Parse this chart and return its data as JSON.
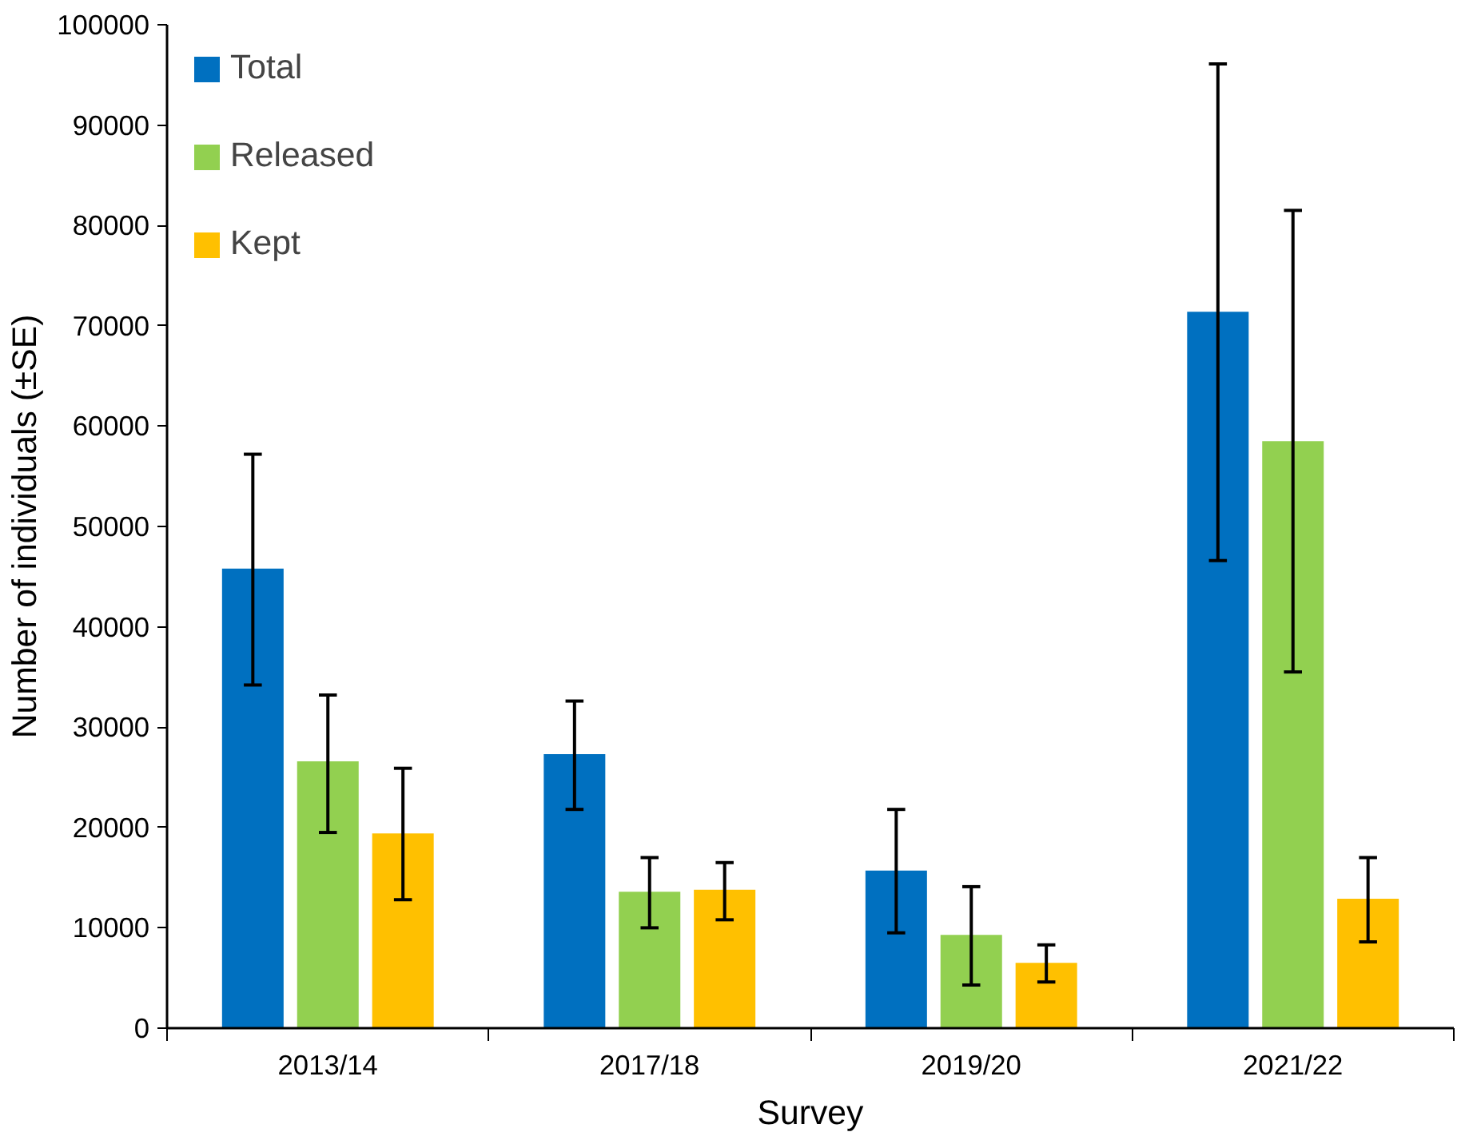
{
  "chart_data": {
    "type": "bar",
    "xlabel": "Survey",
    "ylabel": "Number of individuals (±SE)",
    "categories": [
      "2013/14",
      "2017/18",
      "2019/20",
      "2021/22"
    ],
    "series": [
      {
        "name": "Total",
        "color": "#0070c0",
        "values": [
          45800,
          27300,
          15700,
          71400
        ],
        "errors": [
          [
            34200,
            57200
          ],
          [
            21800,
            32600
          ],
          [
            9500,
            21800
          ],
          [
            46600,
            96100
          ]
        ]
      },
      {
        "name": "Released",
        "color": "#92d050",
        "values": [
          26600,
          13600,
          9300,
          58500
        ],
        "errors": [
          [
            19500,
            33200
          ],
          [
            10000,
            17000
          ],
          [
            4300,
            14100
          ],
          [
            35500,
            81500
          ]
        ]
      },
      {
        "name": "Kept",
        "color": "#ffc000",
        "values": [
          19400,
          13800,
          6500,
          12900
        ],
        "errors": [
          [
            12800,
            25900
          ],
          [
            10800,
            16500
          ],
          [
            4600,
            8300
          ],
          [
            8600,
            17000
          ]
        ]
      }
    ],
    "ylim": [
      0,
      100000
    ],
    "yticks": [
      0,
      10000,
      20000,
      30000,
      40000,
      50000,
      60000,
      70000,
      80000,
      90000,
      100000
    ],
    "grid": false,
    "legend": "top left"
  }
}
